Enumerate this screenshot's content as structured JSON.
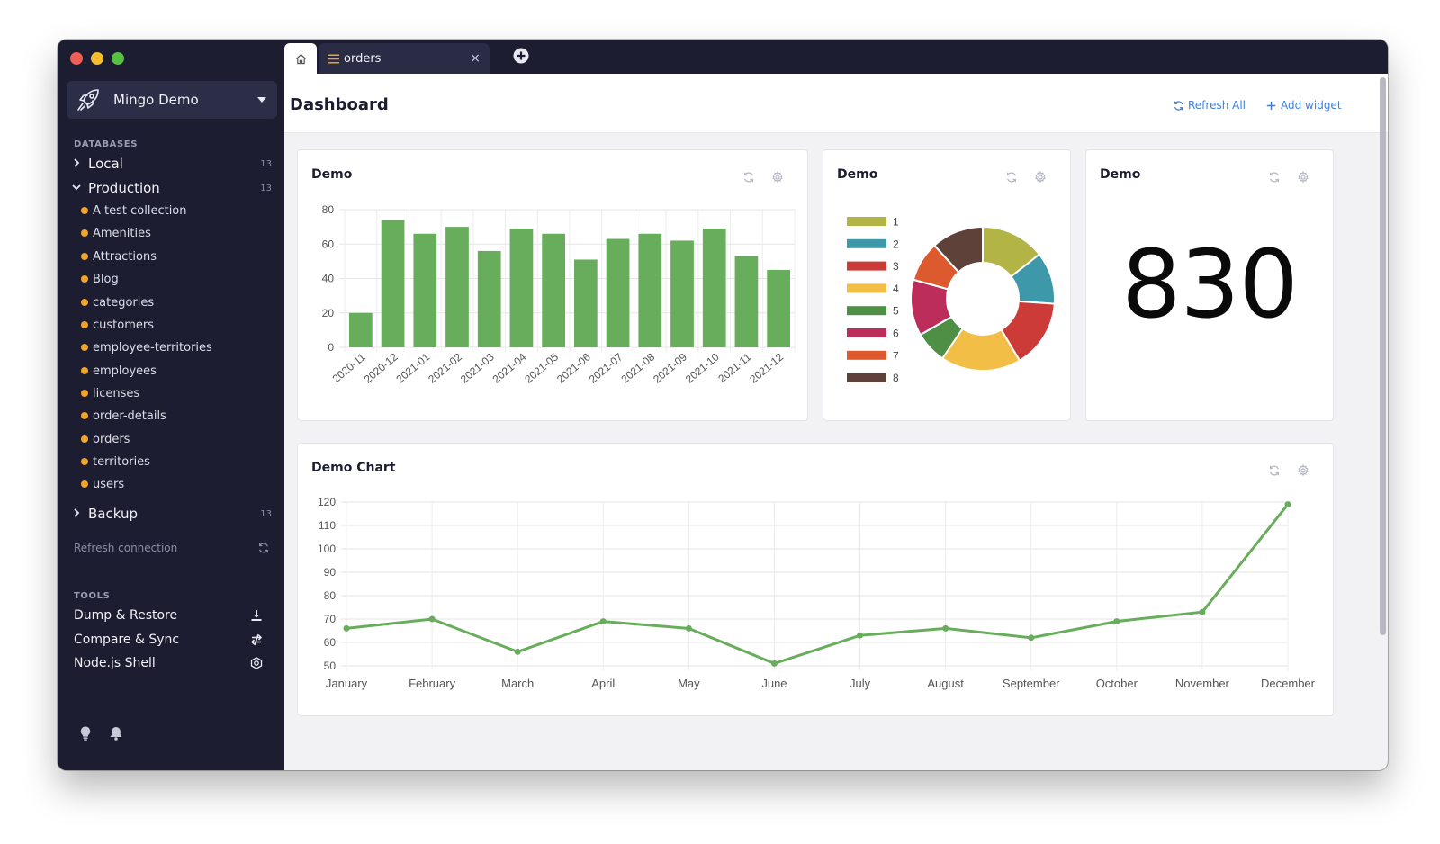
{
  "sidebar": {
    "connection": "Mingo Demo",
    "databases_label": "DATABASES",
    "databases": [
      {
        "name": "Local",
        "count": "13",
        "expanded": false
      },
      {
        "name": "Production",
        "count": "13",
        "expanded": true
      },
      {
        "name": "Backup",
        "count": "13",
        "expanded": false
      }
    ],
    "collections": [
      "A test collection",
      "Amenities",
      "Attractions",
      "Blog",
      "categories",
      "customers",
      "employee-territories",
      "employees",
      "licenses",
      "order-details",
      "orders",
      "territories",
      "users"
    ],
    "refresh_connection": "Refresh connection",
    "tools_label": "TOOLS",
    "tools": [
      "Dump & Restore",
      "Compare & Sync",
      "Node.js Shell"
    ],
    "colors": {
      "background": "#1c1d31",
      "collection_dot": "#f0a429"
    }
  },
  "tabs": {
    "orders_tab": "orders",
    "close_glyph": "×"
  },
  "dashboard": {
    "title": "Dashboard",
    "refresh_all": "Refresh All",
    "add_widget": "Add widget"
  },
  "widgets": {
    "bar_title": "Demo",
    "pie_title": "Demo",
    "number_title": "Demo",
    "number_value": "830",
    "line_title": "Demo Chart"
  },
  "chart_data": [
    {
      "type": "bar",
      "title": "Demo",
      "categories": [
        "2020-11",
        "2020-12",
        "2021-01",
        "2021-02",
        "2021-03",
        "2021-04",
        "2021-05",
        "2021-06",
        "2021-07",
        "2021-08",
        "2021-09",
        "2021-10",
        "2021-11",
        "2021-12"
      ],
      "values": [
        20,
        74,
        66,
        70,
        56,
        69,
        66,
        51,
        63,
        66,
        62,
        69,
        53,
        45
      ],
      "ylim": [
        0,
        80
      ],
      "yticks": [
        0,
        20,
        40,
        60,
        80
      ],
      "color": "#68ad5c",
      "grid": true
    },
    {
      "type": "pie",
      "title": "Demo",
      "donut": true,
      "labels": [
        "1",
        "2",
        "3",
        "4",
        "5",
        "6",
        "7",
        "8"
      ],
      "values": [
        16,
        13,
        17,
        20,
        8,
        14,
        10,
        13
      ],
      "colors": [
        "#b3b446",
        "#3d98aa",
        "#cc3b37",
        "#f2be45",
        "#4e8e45",
        "#bd2d5c",
        "#dd5a2f",
        "#5e4138"
      ],
      "legend": "left"
    },
    {
      "type": "line",
      "title": "Demo Chart",
      "categories": [
        "January",
        "February",
        "March",
        "April",
        "May",
        "June",
        "July",
        "August",
        "September",
        "October",
        "November",
        "December"
      ],
      "values": [
        66,
        70,
        56,
        69,
        66,
        51,
        63,
        66,
        62,
        69,
        73,
        119
      ],
      "ylim": [
        50,
        120
      ],
      "yticks": [
        50,
        60,
        70,
        80,
        90,
        100,
        110,
        120
      ],
      "color": "#68ad5c",
      "grid": true
    }
  ]
}
